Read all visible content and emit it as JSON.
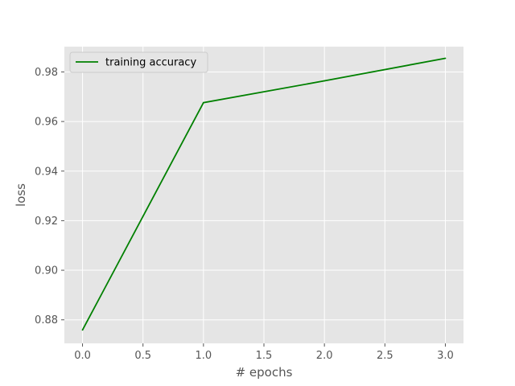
{
  "chart_data": {
    "type": "line",
    "title": "",
    "xlabel": "# epochs",
    "ylabel": "loss",
    "xlim": [
      -0.15,
      3.15
    ],
    "ylim": [
      0.8705,
      0.9902
    ],
    "xticks": [
      0.0,
      0.5,
      1.0,
      1.5,
      2.0,
      2.5,
      3.0
    ],
    "xtick_labels": [
      "0.0",
      "0.5",
      "1.0",
      "1.5",
      "2.0",
      "2.5",
      "3.0"
    ],
    "yticks": [
      0.88,
      0.9,
      0.92,
      0.94,
      0.96,
      0.98
    ],
    "ytick_labels": [
      "0.88",
      "0.90",
      "0.92",
      "0.94",
      "0.96",
      "0.98"
    ],
    "grid": true,
    "legend_position": "top-left",
    "background_color": "#e5e5e5",
    "grid_color": "#ffffff",
    "series": [
      {
        "name": "training accuracy",
        "color": "#008000",
        "x": [
          0,
          1,
          2,
          3
        ],
        "y": [
          0.8759,
          0.9676,
          0.9764,
          0.9855
        ]
      }
    ]
  }
}
